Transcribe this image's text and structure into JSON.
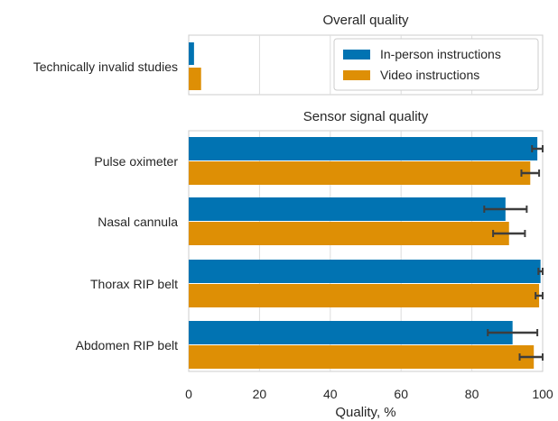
{
  "chart_data": [
    {
      "type": "bar",
      "orientation": "horizontal",
      "title": "Overall quality",
      "categories": [
        "Technically invalid studies"
      ],
      "series": [
        {
          "name": "In-person instructions",
          "values": [
            1.5
          ],
          "color": "#0173b2"
        },
        {
          "name": "Video instructions",
          "values": [
            3.5
          ],
          "color": "#de8f05"
        }
      ],
      "xlim": [
        0,
        100
      ],
      "grid": true,
      "legend": "top-right"
    },
    {
      "type": "bar",
      "orientation": "horizontal",
      "title": "Sensor signal quality",
      "categories": [
        "Pulse oximeter",
        "Nasal cannula",
        "Thorax RIP belt",
        "Abdomen RIP belt"
      ],
      "series": [
        {
          "name": "In-person instructions",
          "values": [
            98.5,
            89.5,
            99.4,
            91.5
          ],
          "error": [
            1.5,
            6.0,
            0.6,
            7.0
          ],
          "color": "#0173b2"
        },
        {
          "name": "Video instructions",
          "values": [
            96.5,
            90.5,
            99.0,
            97.5
          ],
          "error": [
            2.5,
            4.5,
            1.0,
            4.0
          ],
          "color": "#de8f05"
        }
      ],
      "xlabel": "Quality, %",
      "xticks": [
        0,
        20,
        40,
        60,
        80,
        100
      ],
      "xlim": [
        0,
        100
      ],
      "grid": true
    }
  ]
}
